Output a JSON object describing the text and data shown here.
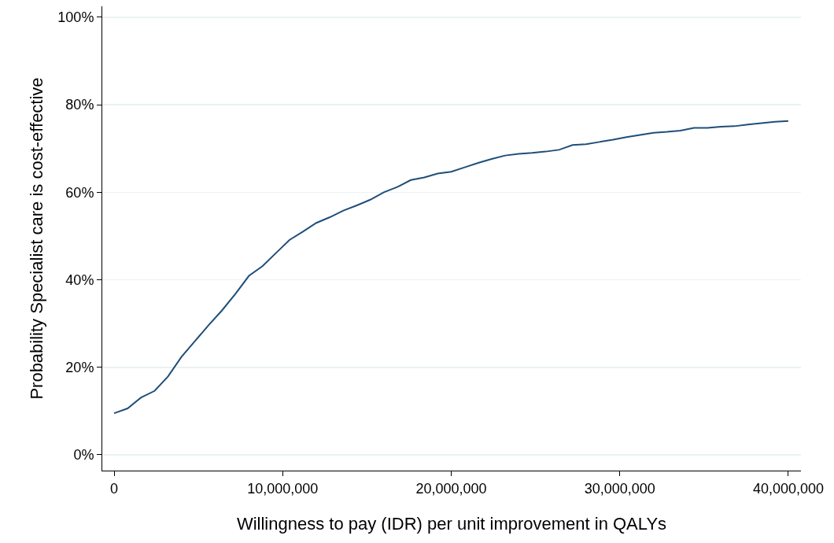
{
  "chart_data": {
    "type": "line",
    "xlabel": "Willingness to pay (IDR) per unit improvement in QALYs",
    "ylabel": "Probability Specialist care is cost-effective",
    "x": [
      0,
      800000,
      1600000,
      2400000,
      3200000,
      4000000,
      4800000,
      5600000,
      6400000,
      7200000,
      8000000,
      8800000,
      9600000,
      10400000,
      11200000,
      12000000,
      12800000,
      13600000,
      14400000,
      15200000,
      16000000,
      16800000,
      17600000,
      18400000,
      19200000,
      20000000,
      20800000,
      21600000,
      22400000,
      23200000,
      24000000,
      24800000,
      25600000,
      26400000,
      27200000,
      28000000,
      28800000,
      29600000,
      30400000,
      31200000,
      32000000,
      32800000,
      33600000,
      34400000,
      35200000,
      36000000,
      36800000,
      37600000,
      38400000,
      39200000,
      40000000
    ],
    "series": [
      {
        "color": "#1f4e79",
        "values": [
          9.5,
          10.6,
          13.1,
          14.6,
          17.9,
          22.4,
          26.0,
          29.6,
          33.0,
          36.8,
          40.9,
          43.1,
          46.1,
          49.1,
          51.0,
          53.0,
          54.3,
          55.8,
          57.0,
          58.3,
          60.0,
          61.2,
          62.8,
          63.4,
          64.3,
          64.7,
          65.7,
          66.7,
          67.6,
          68.4,
          68.8,
          69.0,
          69.3,
          69.7,
          70.8,
          71.0,
          71.5,
          72.0,
          72.6,
          73.1,
          73.6,
          73.8,
          74.1,
          74.7,
          74.7,
          75.0,
          75.1,
          75.5,
          75.8,
          76.1,
          76.3
        ]
      }
    ],
    "xlim": [
      -700000,
      40750000
    ],
    "xticks": [
      {
        "value": 0,
        "label": "0"
      },
      {
        "value": 10000000,
        "label": "10,000,000"
      },
      {
        "value": 20000000,
        "label": "20,000,000"
      },
      {
        "value": 30000000,
        "label": "30,000,000"
      },
      {
        "value": 40000000,
        "label": "40,000,000"
      }
    ],
    "ylim": [
      -3.6,
      102.5
    ],
    "yticks": [
      {
        "value": 0,
        "label": "0%"
      },
      {
        "value": 20,
        "label": "20%"
      },
      {
        "value": 40,
        "label": "40%"
      },
      {
        "value": 60,
        "label": "60%"
      },
      {
        "value": 80,
        "label": "80%"
      },
      {
        "value": 100,
        "label": "100%"
      }
    ],
    "grid": "y",
    "marker": "none",
    "line_style": "solid"
  }
}
